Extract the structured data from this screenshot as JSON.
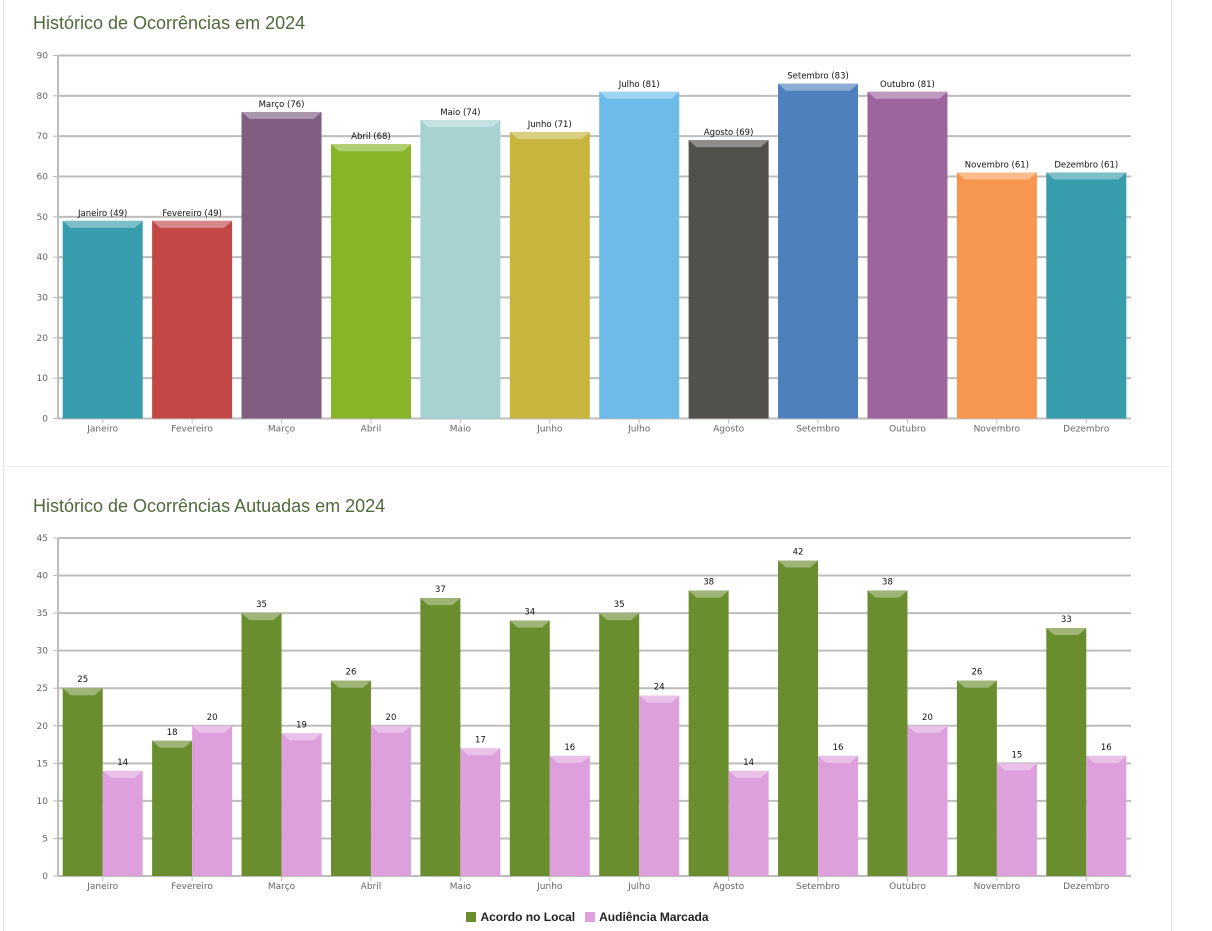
{
  "chart_data": [
    {
      "type": "bar",
      "title": "Histórico de Ocorrências em 2024",
      "xlabel": "",
      "ylabel": "",
      "ylim": [
        0,
        90
      ],
      "yticks": [
        0,
        10,
        20,
        30,
        40,
        50,
        60,
        70,
        80,
        90
      ],
      "grid": true,
      "legend": "none",
      "categories": [
        "Janeiro",
        "Fevereiro",
        "Março",
        "Abril",
        "Maio",
        "Junho",
        "Julho",
        "Agosto",
        "Setembro",
        "Outubro",
        "Novembro",
        "Dezembro"
      ],
      "values": [
        49,
        49,
        76,
        68,
        74,
        71,
        81,
        69,
        83,
        81,
        61,
        61
      ],
      "data_labels": [
        "Janeiro (49)",
        "Fevereiro (49)",
        "Março (76)",
        "Abril (68)",
        "Maio (74)",
        "Junho (71)",
        "Julho (81)",
        "Agosto (69)",
        "Setembro (83)",
        "Outubro (81)",
        "Novembro (61)",
        "Dezembro (61)"
      ],
      "colors": [
        "#379dac",
        "#c24747",
        "#805e82",
        "#88b427",
        "#a6d2d2",
        "#c7b53e",
        "#6dbbe8",
        "#52504c",
        "#4d80bd",
        "#9e649e",
        "#f7974f",
        "#379dac"
      ]
    },
    {
      "type": "bar",
      "title": "Histórico de Ocorrências Autuadas em 2024",
      "xlabel": "",
      "ylabel": "",
      "ylim": [
        0,
        45
      ],
      "yticks": [
        0,
        5,
        10,
        15,
        20,
        25,
        30,
        35,
        40,
        45
      ],
      "grid": true,
      "legend": "bottom-center",
      "categories": [
        "Janeiro",
        "Fevereiro",
        "Março",
        "Abril",
        "Maio",
        "Junho",
        "Julho",
        "Agosto",
        "Setembro",
        "Outubro",
        "Novembro",
        "Dezembro"
      ],
      "series": [
        {
          "name": "Acordo no Local",
          "color": "#6a8d2e",
          "values": [
            25,
            18,
            35,
            26,
            37,
            34,
            35,
            38,
            42,
            38,
            26,
            33
          ]
        },
        {
          "name": "Audiência Marcada",
          "color": "#dda0dd",
          "values": [
            14,
            20,
            19,
            20,
            17,
            16,
            24,
            14,
            16,
            20,
            15,
            16
          ]
        }
      ]
    }
  ]
}
